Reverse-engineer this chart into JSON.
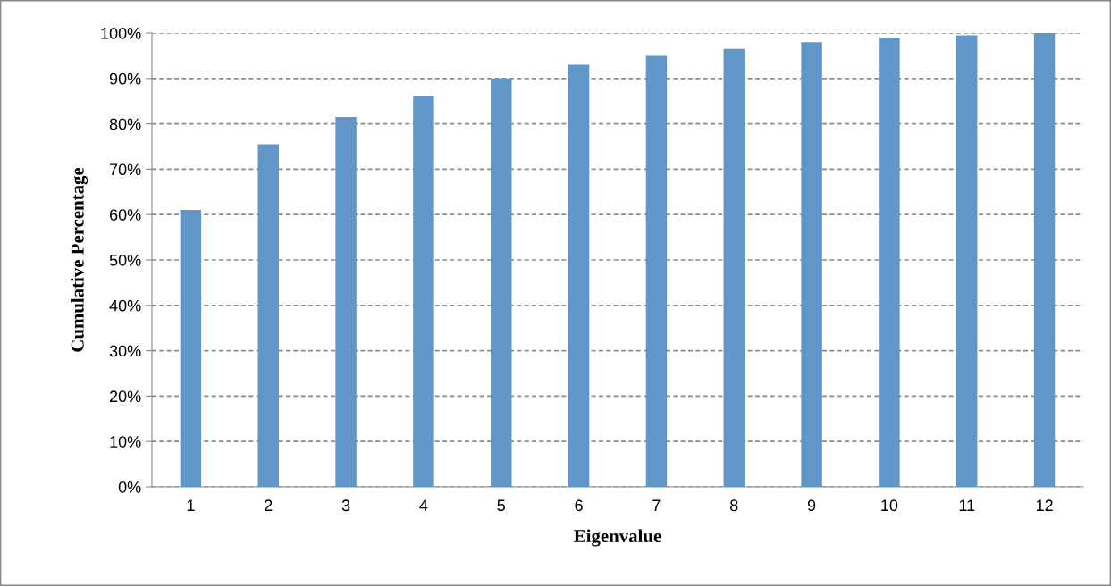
{
  "chart_data": {
    "type": "bar",
    "xlabel": "Eigenvalue",
    "ylabel": "Cumulative Percentage",
    "categories": [
      "1",
      "2",
      "3",
      "4",
      "5",
      "6",
      "7",
      "8",
      "9",
      "10",
      "11",
      "12"
    ],
    "values": [
      61,
      75.5,
      81.5,
      86,
      90,
      93,
      95,
      96.5,
      98,
      99,
      99.5,
      100
    ],
    "color": "#6096c8",
    "ylim": [
      0,
      100
    ],
    "yticks": [
      {
        "value": 0,
        "label": "0%"
      },
      {
        "value": 10,
        "label": "10%"
      },
      {
        "value": 20,
        "label": "20%"
      },
      {
        "value": 30,
        "label": "30%"
      },
      {
        "value": 40,
        "label": "40%"
      },
      {
        "value": 50,
        "label": "50%"
      },
      {
        "value": 60,
        "label": "60%"
      },
      {
        "value": 70,
        "label": "70%"
      },
      {
        "value": 80,
        "label": "80%"
      },
      {
        "value": 90,
        "label": "90%"
      },
      {
        "value": 100,
        "label": "100%"
      }
    ],
    "grid": "y",
    "line_style": "dashed"
  }
}
